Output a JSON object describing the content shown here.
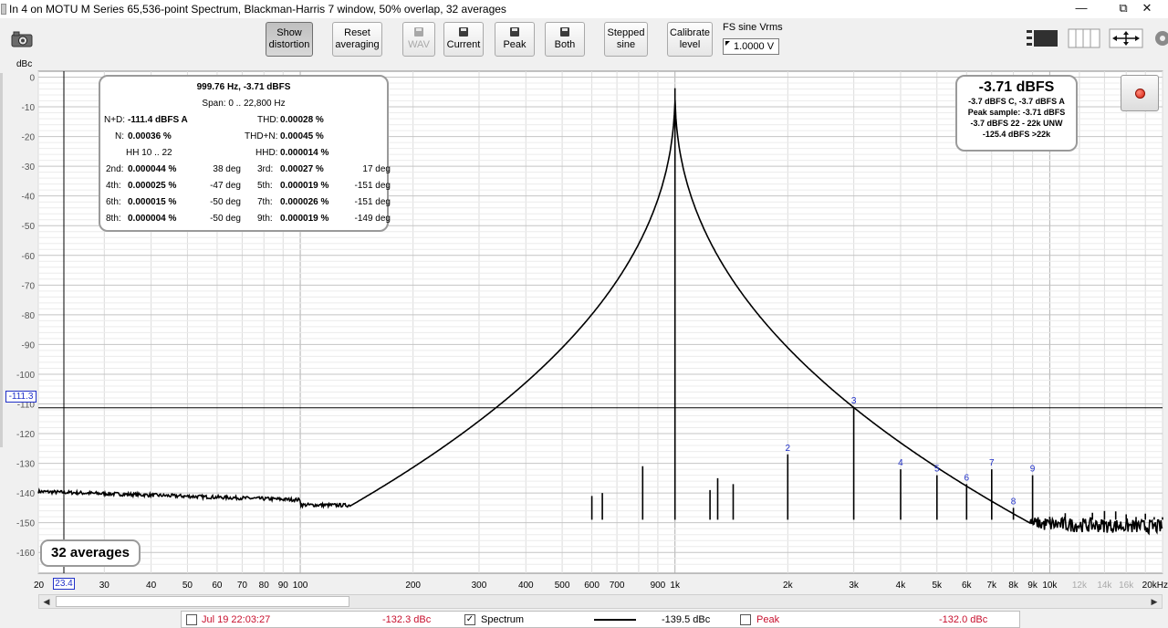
{
  "window": {
    "title": "In 4 on MOTU M Series 65,536-point Spectrum, Blackman-Harris 7 window, 50% overlap, 32 averages",
    "minimize": "—",
    "restore": "⧉",
    "close": "✕"
  },
  "toolbar": {
    "show_distortion": [
      "Show",
      "distortion"
    ],
    "reset_averaging": [
      "Reset",
      "averaging"
    ],
    "wav": "WAV",
    "current": "Current",
    "peak": "Peak",
    "both": "Both",
    "stepped_sine": [
      "Stepped",
      "sine"
    ],
    "calibrate_level": [
      "Calibrate",
      "level"
    ],
    "fs_label": "FS sine Vrms",
    "fs_value": "1.0000 V",
    "icons": [
      "camera-icon",
      "floppy-icon",
      "layout-icon",
      "columns-icon",
      "fit-arrows-icon",
      "gear-icon"
    ]
  },
  "plot": {
    "y_unit": "dBc",
    "y_ticks": [
      "0",
      "-10",
      "-20",
      "-30",
      "-40",
      "-50",
      "-60",
      "-70",
      "-80",
      "-90",
      "-100",
      "-110",
      "-120",
      "-130",
      "-140",
      "-150",
      "-160"
    ],
    "y_range": [
      -167,
      2
    ],
    "x_range": [
      20,
      20000
    ],
    "x_scale": "log",
    "x_ticks": [
      {
        "v": 20,
        "t": "20"
      },
      {
        "v": 30,
        "t": "30"
      },
      {
        "v": 40,
        "t": "40"
      },
      {
        "v": 50,
        "t": "50"
      },
      {
        "v": 60,
        "t": "60"
      },
      {
        "v": 70,
        "t": "70"
      },
      {
        "v": 80,
        "t": "80"
      },
      {
        "v": 90,
        "t": "90"
      },
      {
        "v": 100,
        "t": "100"
      },
      {
        "v": 200,
        "t": "200"
      },
      {
        "v": 300,
        "t": "300"
      },
      {
        "v": 400,
        "t": "400"
      },
      {
        "v": 500,
        "t": "500"
      },
      {
        "v": 600,
        "t": "600"
      },
      {
        "v": 700,
        "t": "700"
      },
      {
        "v": 900,
        "t": "900"
      },
      {
        "v": 1000,
        "t": "1k"
      },
      {
        "v": 2000,
        "t": "2k"
      },
      {
        "v": 3000,
        "t": "3k"
      },
      {
        "v": 4000,
        "t": "4k"
      },
      {
        "v": 5000,
        "t": "5k"
      },
      {
        "v": 6000,
        "t": "6k"
      },
      {
        "v": 7000,
        "t": "7k"
      },
      {
        "v": 8000,
        "t": "8k"
      },
      {
        "v": 9000,
        "t": "9k"
      },
      {
        "v": 10000,
        "t": "10k"
      },
      {
        "v": 12000,
        "t": "12k",
        "minor": true
      },
      {
        "v": 14000,
        "t": "14k",
        "minor": true
      },
      {
        "v": 16000,
        "t": "16k",
        "minor": true
      },
      {
        "v": 20000,
        "t": "20kHz"
      }
    ],
    "y_cursor": "-111.3",
    "x_cursor": "23.4",
    "harmonics": [
      {
        "n": "2",
        "f": 2000,
        "db": -127
      },
      {
        "n": "3",
        "f": 3000,
        "db": -111
      },
      {
        "n": "4",
        "f": 4000,
        "db": -132
      },
      {
        "n": "5",
        "f": 5000,
        "db": -134
      },
      {
        "n": "6",
        "f": 6000,
        "db": -137
      },
      {
        "n": "7",
        "f": 7000,
        "db": -132
      },
      {
        "n": "8",
        "f": 8000,
        "db": -145
      },
      {
        "n": "9",
        "f": 9000,
        "db": -134
      }
    ]
  },
  "distortion": {
    "header": "999.76 Hz, -3.71 dBFS",
    "span": "Span: 0 .. 22,800 Hz",
    "nd_label": "N+D:",
    "nd_value": "-111.4 dBFS A",
    "thd_label": "THD:",
    "thd_value": "0.00028 %",
    "n_label": "N:",
    "n_value": "0.00036 %",
    "thdn_label": "THD+N:",
    "thdn_value": "0.00045 %",
    "hh_label": "HH 10 .. 22",
    "hhd_label": "HHD:",
    "hhd_value": "0.000014 %",
    "rows": [
      {
        "l1": "2nd:",
        "v1": "0.000044 %",
        "d1": "38 deg",
        "l2": "3rd:",
        "v2": "0.00027 %",
        "d2": "17 deg"
      },
      {
        "l1": "4th:",
        "v1": "0.000025 %",
        "d1": "-47 deg",
        "l2": "5th:",
        "v2": "0.000019 %",
        "d2": "-151 deg"
      },
      {
        "l1": "6th:",
        "v1": "0.000015 %",
        "d1": "-50 deg",
        "l2": "7th:",
        "v2": "0.000026 %",
        "d2": "-151 deg"
      },
      {
        "l1": "8th:",
        "v1": "0.000004 %",
        "d1": "-50 deg",
        "l2": "9th:",
        "v2": "0.000019 %",
        "d2": "-149 deg"
      }
    ]
  },
  "level": {
    "main": "-3.71 dBFS",
    "l1": "-3.7 dBFS C, -3.7 dBFS A",
    "l2": "Peak sample: -3.71 dBFS",
    "l3": "-3.7 dBFS 22 - 22k UNW",
    "l4": "-125.4 dBFS >22k"
  },
  "averages": "32 averages",
  "status": {
    "date": "Jul 19 22:03:27",
    "date_value": "-132.3 dBc",
    "spectrum_label": "Spectrum",
    "spectrum_checked": true,
    "spectrum_value": "-139.5 dBc",
    "peak_label": "Peak",
    "peak_checked": false,
    "peak_value": "-132.0 dBc"
  },
  "scroll": {
    "left": "◀",
    "right": "▶"
  },
  "colors": {
    "accent_blue": "#1f2fc8",
    "status_red": "#c8102e",
    "trace": "#000000"
  }
}
